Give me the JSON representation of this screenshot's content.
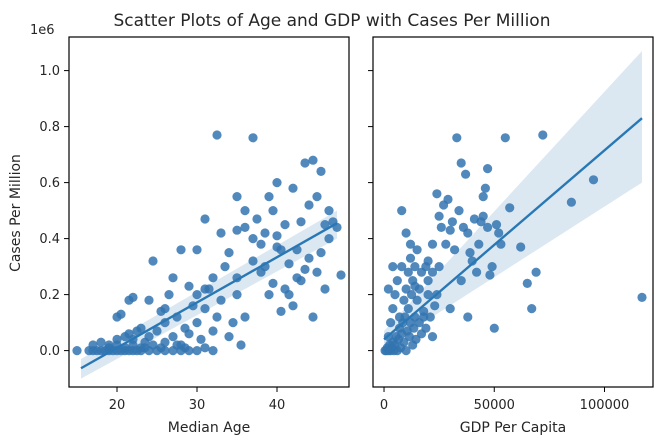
{
  "title": "Scatter Plots of Age and GDP with Cases Per Million",
  "ylabel": "Cases Per Million",
  "yscale_label": "1e6",
  "colors": {
    "point": "#3274b0",
    "line": "#2978b5",
    "band": "#cfe0ee"
  },
  "chart_data": [
    {
      "type": "scatter",
      "xlabel": "Median Age",
      "ylabel": "Cases Per Million",
      "xlim": [
        14,
        49
      ],
      "ylim": [
        -0.13,
        1.12
      ],
      "xticks": [
        20,
        30,
        40
      ],
      "xtick_labels": [
        "20",
        "30",
        "40"
      ],
      "yticks": [
        0.0,
        0.2,
        0.4,
        0.6,
        0.8,
        1.0
      ],
      "ytick_labels": [
        "0.0",
        "0.2",
        "0.4",
        "0.6",
        "0.8",
        "1.0"
      ],
      "y_multiplier": "1e6",
      "regression": {
        "x": [
          15.5,
          47.5
        ],
        "y": [
          -0.063,
          0.455
        ],
        "ci_lower": [
          -0.1,
          0.4
        ],
        "ci_upper": [
          -0.03,
          0.5
        ]
      },
      "points": [
        [
          15,
          0.0
        ],
        [
          16.5,
          0.0
        ],
        [
          17,
          0.0
        ],
        [
          17.5,
          0.0
        ],
        [
          18,
          0.0
        ],
        [
          18.5,
          0.0
        ],
        [
          19,
          0.0
        ],
        [
          19,
          0.01
        ],
        [
          19.5,
          0.0
        ],
        [
          20,
          0.0
        ],
        [
          20,
          0.02
        ],
        [
          20.5,
          0.0
        ],
        [
          21,
          0.0
        ],
        [
          21,
          0.01
        ],
        [
          21.5,
          0.0
        ],
        [
          22,
          0.0
        ],
        [
          22,
          0.02
        ],
        [
          22.5,
          0.0
        ],
        [
          23,
          0.01
        ],
        [
          23,
          0.0
        ],
        [
          23.5,
          0.01
        ],
        [
          24,
          0.0
        ],
        [
          24.5,
          0.02
        ],
        [
          25,
          0.0
        ],
        [
          25.5,
          0.01
        ],
        [
          26,
          0.0
        ],
        [
          26,
          0.03
        ],
        [
          27,
          0.0
        ],
        [
          27.5,
          0.02
        ],
        [
          28,
          0.0
        ],
        [
          28.5,
          0.01
        ],
        [
          29,
          0.0
        ],
        [
          30,
          0.0
        ],
        [
          31,
          0.01
        ],
        [
          32,
          0.0
        ],
        [
          17,
          0.02
        ],
        [
          18,
          0.03
        ],
        [
          19,
          0.02
        ],
        [
          20,
          0.04
        ],
        [
          20,
          0.12
        ],
        [
          20.5,
          0.13
        ],
        [
          21,
          0.05
        ],
        [
          21.5,
          0.06
        ],
        [
          22,
          0.04
        ],
        [
          22.5,
          0.07
        ],
        [
          23,
          0.08
        ],
        [
          23.5,
          0.03
        ],
        [
          24,
          0.05
        ],
        [
          24,
          0.18
        ],
        [
          24.5,
          0.32
        ],
        [
          25,
          0.07
        ],
        [
          25.5,
          0.14
        ],
        [
          26,
          0.1
        ],
        [
          26.5,
          0.2
        ],
        [
          27,
          0.05
        ],
        [
          27.5,
          0.12
        ],
        [
          28,
          0.02
        ],
        [
          28.5,
          0.08
        ],
        [
          29,
          0.06
        ],
        [
          29.5,
          0.16
        ],
        [
          30,
          0.1
        ],
        [
          30,
          0.2
        ],
        [
          30.5,
          0.04
        ],
        [
          31,
          0.15
        ],
        [
          31.5,
          0.22
        ],
        [
          32,
          0.07
        ],
        [
          32.5,
          0.12
        ],
        [
          33,
          0.18
        ],
        [
          33.5,
          0.3
        ],
        [
          34,
          0.05
        ],
        [
          34.5,
          0.1
        ],
        [
          35,
          0.2
        ],
        [
          35.5,
          0.02
        ],
        [
          21.5,
          0.18
        ],
        [
          22,
          0.19
        ],
        [
          26,
          0.15
        ],
        [
          27,
          0.26
        ],
        [
          28,
          0.36
        ],
        [
          29,
          0.23
        ],
        [
          30,
          0.36
        ],
        [
          31,
          0.22
        ],
        [
          31,
          0.47
        ],
        [
          32,
          0.26
        ],
        [
          32.5,
          0.77
        ],
        [
          33,
          0.42
        ],
        [
          34,
          0.35
        ],
        [
          35,
          0.43
        ],
        [
          35,
          0.26
        ],
        [
          36,
          0.5
        ],
        [
          36,
          0.12
        ],
        [
          37,
          0.76
        ],
        [
          37,
          0.4
        ],
        [
          37.5,
          0.47
        ],
        [
          38,
          0.28
        ],
        [
          38.5,
          0.3
        ],
        [
          39,
          0.55
        ],
        [
          39,
          0.2
        ],
        [
          39.5,
          0.24
        ],
        [
          40,
          0.6
        ],
        [
          40,
          0.37
        ],
        [
          40.5,
          0.14
        ],
        [
          41,
          0.45
        ],
        [
          41,
          0.22
        ],
        [
          41.5,
          0.31
        ],
        [
          42,
          0.58
        ],
        [
          42,
          0.16
        ],
        [
          42.5,
          0.36
        ],
        [
          43,
          0.46
        ],
        [
          43,
          0.25
        ],
        [
          43.5,
          0.67
        ],
        [
          44,
          0.52
        ],
        [
          44,
          0.33
        ],
        [
          44.5,
          0.68
        ],
        [
          45,
          0.55
        ],
        [
          45,
          0.28
        ],
        [
          45.5,
          0.64
        ],
        [
          46,
          0.45
        ],
        [
          46,
          0.22
        ],
        [
          46.5,
          0.4
        ],
        [
          47,
          0.46
        ],
        [
          47.5,
          0.44
        ],
        [
          48,
          0.27
        ],
        [
          35,
          0.55
        ],
        [
          36,
          0.44
        ],
        [
          37,
          0.32
        ],
        [
          38,
          0.38
        ],
        [
          38.5,
          0.42
        ],
        [
          39.5,
          0.5
        ],
        [
          40,
          0.41
        ],
        [
          40.5,
          0.36
        ],
        [
          41.5,
          0.2
        ],
        [
          42.5,
          0.26
        ],
        [
          43.5,
          0.29
        ],
        [
          44.5,
          0.12
        ],
        [
          45.5,
          0.35
        ],
        [
          46.5,
          0.5
        ]
      ]
    },
    {
      "type": "scatter",
      "xlabel": "GDP Per Capita",
      "ylabel": "",
      "xlim": [
        -5000,
        122000
      ],
      "ylim": [
        -0.13,
        1.12
      ],
      "xticks": [
        0,
        50000,
        100000
      ],
      "xtick_labels": [
        "0",
        "50000",
        "100000"
      ],
      "yticks": [
        0.0,
        0.2,
        0.4,
        0.6,
        0.8,
        1.0
      ],
      "regression": {
        "x": [
          0,
          117000
        ],
        "y": [
          0.04,
          0.83
        ],
        "ci_lower": [
          0.01,
          0.6
        ],
        "ci_upper": [
          0.07,
          1.07
        ]
      },
      "points": [
        [
          500,
          0.0
        ],
        [
          1000,
          0.0
        ],
        [
          1500,
          0.01
        ],
        [
          2000,
          0.0
        ],
        [
          2500,
          0.02
        ],
        [
          3000,
          0.0
        ],
        [
          3500,
          0.01
        ],
        [
          4000,
          0.03
        ],
        [
          4500,
          0.0
        ],
        [
          5000,
          0.02
        ],
        [
          5500,
          0.05
        ],
        [
          6000,
          0.0
        ],
        [
          6500,
          0.04
        ],
        [
          7000,
          0.08
        ],
        [
          7500,
          0.01
        ],
        [
          8000,
          0.06
        ],
        [
          8500,
          0.1
        ],
        [
          9000,
          0.03
        ],
        [
          9500,
          0.12
        ],
        [
          10000,
          0.0
        ],
        [
          10500,
          0.07
        ],
        [
          11000,
          0.15
        ],
        [
          11500,
          0.05
        ],
        [
          12000,
          0.1
        ],
        [
          12500,
          0.2
        ],
        [
          13000,
          0.02
        ],
        [
          13500,
          0.08
        ],
        [
          14000,
          0.12
        ],
        [
          14500,
          0.04
        ],
        [
          15000,
          0.18
        ],
        [
          16000,
          0.1
        ],
        [
          17000,
          0.06
        ],
        [
          18000,
          0.14
        ],
        [
          19000,
          0.08
        ],
        [
          20000,
          0.2
        ],
        [
          21000,
          0.12
        ],
        [
          22000,
          0.05
        ],
        [
          23000,
          0.16
        ],
        [
          2000,
          0.05
        ],
        [
          3000,
          0.1
        ],
        [
          4000,
          0.15
        ],
        [
          5000,
          0.2
        ],
        [
          6000,
          0.25
        ],
        [
          7000,
          0.12
        ],
        [
          8000,
          0.3
        ],
        [
          9000,
          0.18
        ],
        [
          10000,
          0.22
        ],
        [
          11000,
          0.28
        ],
        [
          12000,
          0.33
        ],
        [
          13000,
          0.25
        ],
        [
          14000,
          0.3
        ],
        [
          15000,
          0.36
        ],
        [
          16000,
          0.22
        ],
        [
          17000,
          0.28
        ],
        [
          18000,
          0.12
        ],
        [
          19000,
          0.3
        ],
        [
          20000,
          0.25
        ],
        [
          22000,
          0.38
        ],
        [
          24000,
          0.2
        ],
        [
          25000,
          0.3
        ],
        [
          2000,
          0.22
        ],
        [
          4000,
          0.3
        ],
        [
          8000,
          0.5
        ],
        [
          10000,
          0.42
        ],
        [
          12000,
          0.38
        ],
        [
          14000,
          0.23
        ],
        [
          20000,
          0.32
        ],
        [
          22000,
          0.28
        ],
        [
          24000,
          0.56
        ],
        [
          25000,
          0.48
        ],
        [
          26000,
          0.44
        ],
        [
          27000,
          0.52
        ],
        [
          28000,
          0.38
        ],
        [
          29000,
          0.54
        ],
        [
          30000,
          0.43
        ],
        [
          31000,
          0.46
        ],
        [
          32000,
          0.36
        ],
        [
          33000,
          0.76
        ],
        [
          34000,
          0.5
        ],
        [
          35000,
          0.67
        ],
        [
          36000,
          0.44
        ],
        [
          37000,
          0.63
        ],
        [
          38000,
          0.42
        ],
        [
          39000,
          0.35
        ],
        [
          40000,
          0.32
        ],
        [
          41000,
          0.47
        ],
        [
          42000,
          0.28
        ],
        [
          43000,
          0.38
        ],
        [
          44000,
          0.46
        ],
        [
          45000,
          0.55
        ],
        [
          46000,
          0.58
        ],
        [
          47000,
          0.44
        ],
        [
          48000,
          0.27
        ],
        [
          50000,
          0.08
        ],
        [
          52000,
          0.42
        ],
        [
          55000,
          0.76
        ],
        [
          57000,
          0.51
        ],
        [
          62000,
          0.37
        ],
        [
          65000,
          0.24
        ],
        [
          67000,
          0.15
        ],
        [
          69000,
          0.28
        ],
        [
          72000,
          0.77
        ],
        [
          85000,
          0.53
        ],
        [
          95000,
          0.61
        ],
        [
          117000,
          0.19
        ],
        [
          30000,
          0.15
        ],
        [
          35000,
          0.25
        ],
        [
          38000,
          0.12
        ],
        [
          45000,
          0.48
        ],
        [
          47000,
          0.65
        ],
        [
          49000,
          0.3
        ],
        [
          51000,
          0.45
        ],
        [
          53000,
          0.38
        ]
      ]
    }
  ]
}
